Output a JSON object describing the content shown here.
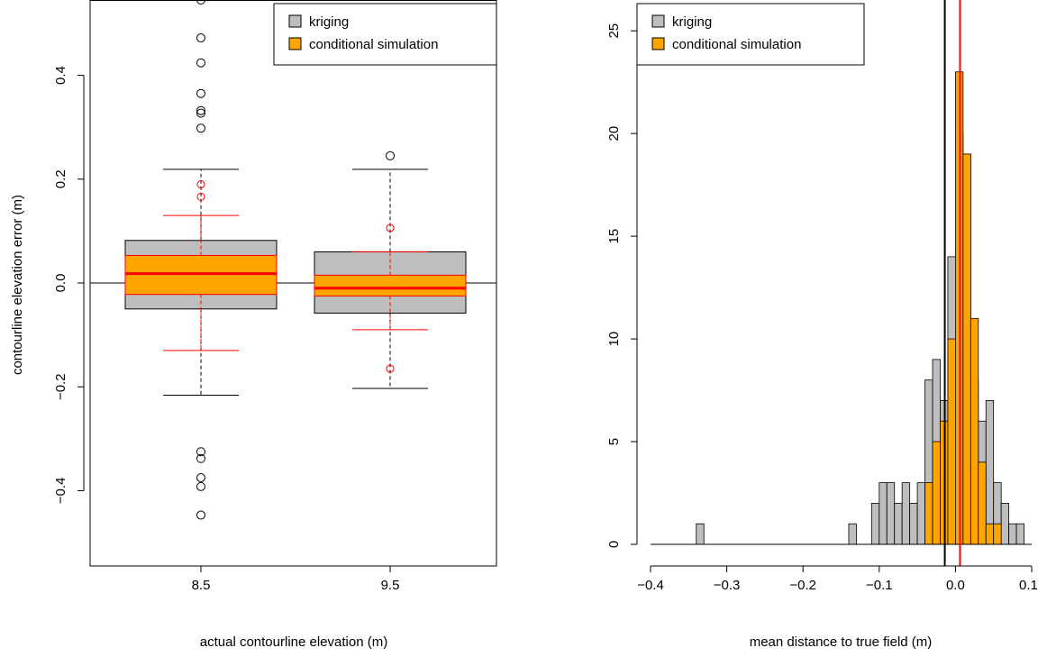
{
  "colors": {
    "kriging": "#bebebe",
    "conditional_simulation": "#ffa500",
    "red": "#ff0000",
    "black": "#000000"
  },
  "chart_data": [
    {
      "type": "boxplot",
      "ylabel": "contourline elevation error (m)",
      "xlabel": "actual contourline elevation (m)",
      "categories": [
        "8.5",
        "9.5"
      ],
      "ylim": [
        -0.545,
        0.545
      ],
      "yticks": [
        -0.4,
        -0.2,
        0.0,
        0.2,
        0.4
      ],
      "ytick_labels": [
        "−0.4",
        "−0.2",
        "0.0",
        "0.2",
        "0.4"
      ],
      "hline": 0,
      "legend": {
        "position": "top-right",
        "entries": [
          "kriging",
          "conditional simulation"
        ]
      },
      "series": [
        {
          "name": "kriging",
          "boxes": [
            {
              "category": "8.5",
              "lower_whisker": -0.216,
              "q1": -0.05,
              "median": 0.02,
              "q3": 0.082,
              "upper_whisker": 0.219,
              "outliers": [
                0.545,
                0.472,
                0.424,
                0.365,
                0.332,
                0.327,
                0.298,
                -0.325,
                -0.338,
                -0.375,
                -0.392,
                -0.447
              ]
            },
            {
              "category": "9.5",
              "lower_whisker": -0.203,
              "q1": -0.058,
              "median": -0.01,
              "q3": 0.06,
              "upper_whisker": 0.219,
              "outliers": [
                0.245
              ]
            }
          ]
        },
        {
          "name": "conditional simulation",
          "boxes": [
            {
              "category": "8.5",
              "lower_whisker": -0.13,
              "q1": -0.022,
              "median": 0.018,
              "q3": 0.053,
              "upper_whisker": 0.13,
              "outliers": [
                0.19,
                0.166
              ]
            },
            {
              "category": "9.5",
              "lower_whisker": -0.09,
              "q1": -0.025,
              "median": -0.01,
              "q3": 0.015,
              "upper_whisker": 0.06,
              "outliers": [
                0.106,
                -0.165
              ]
            }
          ]
        }
      ]
    },
    {
      "type": "histogram",
      "xlabel": "mean distance to true field (m)",
      "xlim": [
        -0.4,
        0.1
      ],
      "ylim": [
        0,
        26.5
      ],
      "xticks": [
        -0.4,
        -0.3,
        -0.2,
        -0.1,
        0.0,
        0.1
      ],
      "xtick_labels": [
        "−0.4",
        "−0.3",
        "−0.2",
        "−0.1",
        "0.0",
        "0.1"
      ],
      "yticks": [
        0,
        5,
        10,
        15,
        20,
        25
      ],
      "ytick_labels": [
        "0",
        "5",
        "10",
        "15",
        "20",
        "25"
      ],
      "bin_width": 0.01,
      "legend": {
        "position": "top-left",
        "entries": [
          "kriging",
          "conditional simulation"
        ]
      },
      "vlines": [
        {
          "x": -0.014,
          "color": "#000000"
        },
        {
          "x": 0.006,
          "color": "#ff0000"
        }
      ],
      "series": [
        {
          "name": "kriging",
          "bin_starts": [
            -0.34,
            -0.14,
            -0.11,
            -0.1,
            -0.09,
            -0.08,
            -0.07,
            -0.06,
            -0.05,
            -0.04,
            -0.03,
            -0.02,
            -0.01,
            0.0,
            0.01,
            0.02,
            0.03,
            0.04,
            0.05,
            0.06,
            0.07,
            0.08
          ],
          "counts": [
            1,
            1,
            2,
            3,
            3,
            2,
            3,
            2,
            3,
            8,
            9,
            7,
            14,
            20,
            19,
            8,
            6,
            7,
            3,
            2,
            1,
            1
          ]
        },
        {
          "name": "conditional simulation",
          "bin_starts": [
            -0.04,
            -0.03,
            -0.02,
            -0.01,
            0.0,
            0.01,
            0.02,
            0.03,
            0.04,
            0.05
          ],
          "counts": [
            3,
            5,
            6,
            10,
            23,
            19,
            11,
            4,
            1,
            1
          ]
        }
      ]
    }
  ]
}
